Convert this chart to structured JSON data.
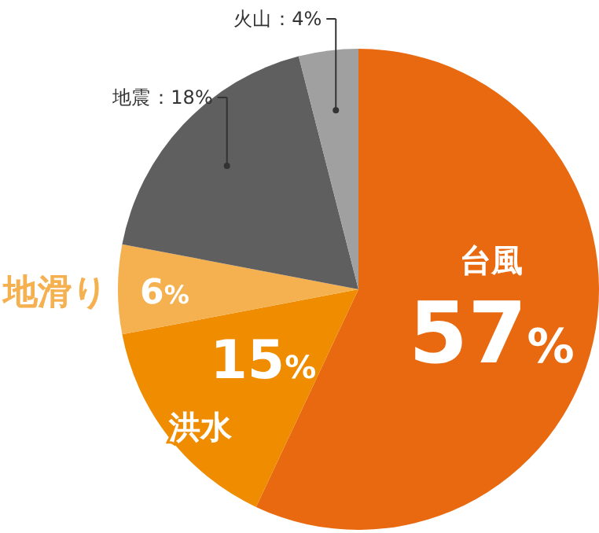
{
  "chart_data": {
    "type": "pie",
    "categories": [
      "台風",
      "洪水",
      "地滑り",
      "地震",
      "火山"
    ],
    "values": [
      57,
      15,
      6,
      18,
      4
    ],
    "value_labels": [
      "57%",
      "15%",
      "6%",
      "：18%",
      "：4%"
    ],
    "colors": [
      "#e8690f",
      "#f08c00",
      "#f5b050",
      "#5f5f5f",
      "#a0a0a0"
    ]
  }
}
